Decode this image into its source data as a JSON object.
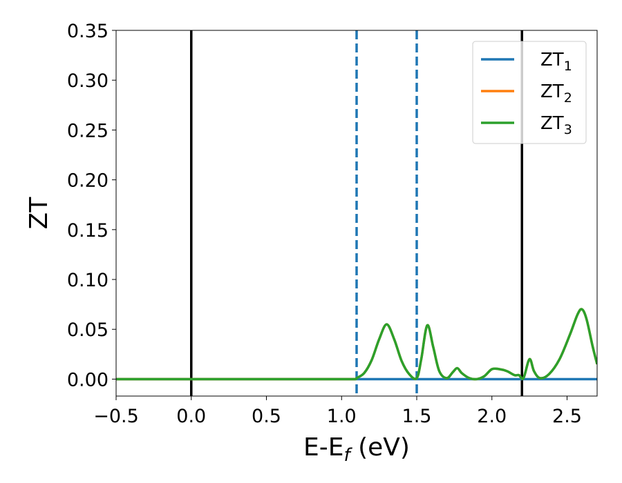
{
  "chart_data": {
    "type": "line",
    "xlabel": {
      "base": "E-E",
      "sub": "f",
      "suffix": " (eV)"
    },
    "ylabel": "ZT",
    "xlim": [
      -0.5,
      2.7
    ],
    "ylim": [
      -0.017,
      0.35
    ],
    "xticks": [
      -0.5,
      0.0,
      0.5,
      1.0,
      1.5,
      2.0,
      2.5
    ],
    "xtick_labels": [
      "−0.5",
      "0.0",
      "0.5",
      "1.0",
      "1.5",
      "2.0",
      "2.5"
    ],
    "yticks": [
      0.0,
      0.05,
      0.1,
      0.15,
      0.2,
      0.25,
      0.3,
      0.35
    ],
    "ytick_labels": [
      "0.00",
      "0.05",
      "0.10",
      "0.15",
      "0.20",
      "0.25",
      "0.30",
      "0.35"
    ],
    "grid": false,
    "legend_position": "top-right",
    "series": [
      {
        "name": {
          "base": "ZT",
          "sub": "1"
        },
        "color": "#1f77b4",
        "x": [
          -0.5,
          2.7
        ],
        "y": [
          0.0,
          0.0
        ]
      },
      {
        "name": {
          "base": "ZT",
          "sub": "2"
        },
        "color": "#ff7f0e",
        "x": [
          -0.5,
          0.0,
          0.5,
          1.0,
          1.09,
          1.1,
          1.15,
          1.2,
          1.25,
          1.3,
          1.35,
          1.4,
          1.45,
          1.5,
          1.53,
          1.57,
          1.61,
          1.65,
          1.7,
          1.74,
          1.77,
          1.8,
          1.85,
          1.9,
          1.95,
          2.0,
          2.05,
          2.1,
          2.15,
          2.18,
          2.21,
          2.25,
          2.28,
          2.32,
          2.38,
          2.45,
          2.52,
          2.57,
          2.6,
          2.63,
          2.67,
          2.7
        ],
        "y": [
          0.0,
          0.0,
          0.0,
          0.0,
          0.0,
          0.001,
          0.006,
          0.019,
          0.04,
          0.055,
          0.04,
          0.018,
          0.005,
          0.001,
          0.02,
          0.054,
          0.032,
          0.008,
          0.001,
          0.007,
          0.011,
          0.006,
          0.001,
          0.0,
          0.003,
          0.01,
          0.01,
          0.008,
          0.004,
          0.004,
          0.001,
          0.02,
          0.008,
          0.001,
          0.005,
          0.02,
          0.045,
          0.065,
          0.07,
          0.06,
          0.033,
          0.015
        ]
      },
      {
        "name": {
          "base": "ZT",
          "sub": "3"
        },
        "color": "#2ca02c",
        "x": [
          -0.5,
          0.0,
          0.5,
          1.0,
          1.09,
          1.1,
          1.15,
          1.2,
          1.25,
          1.3,
          1.35,
          1.4,
          1.45,
          1.5,
          1.53,
          1.57,
          1.61,
          1.65,
          1.7,
          1.74,
          1.77,
          1.8,
          1.85,
          1.9,
          1.95,
          2.0,
          2.05,
          2.1,
          2.15,
          2.18,
          2.21,
          2.25,
          2.28,
          2.32,
          2.38,
          2.45,
          2.52,
          2.57,
          2.6,
          2.63,
          2.67,
          2.7
        ],
        "y": [
          0.0,
          0.0,
          0.0,
          0.0,
          0.0,
          0.001,
          0.006,
          0.019,
          0.04,
          0.055,
          0.04,
          0.018,
          0.005,
          0.001,
          0.02,
          0.054,
          0.032,
          0.008,
          0.001,
          0.007,
          0.011,
          0.006,
          0.001,
          0.0,
          0.003,
          0.01,
          0.01,
          0.008,
          0.004,
          0.004,
          0.001,
          0.02,
          0.008,
          0.001,
          0.005,
          0.02,
          0.045,
          0.065,
          0.07,
          0.06,
          0.033,
          0.015
        ]
      }
    ],
    "vlines": [
      {
        "x": 0.0,
        "style": "solid",
        "color": "#000000"
      },
      {
        "x": 2.2,
        "style": "solid",
        "color": "#000000"
      },
      {
        "x": 1.1,
        "style": "dashed",
        "color": "#1f77b4"
      },
      {
        "x": 1.5,
        "style": "dashed",
        "color": "#1f77b4"
      }
    ]
  }
}
